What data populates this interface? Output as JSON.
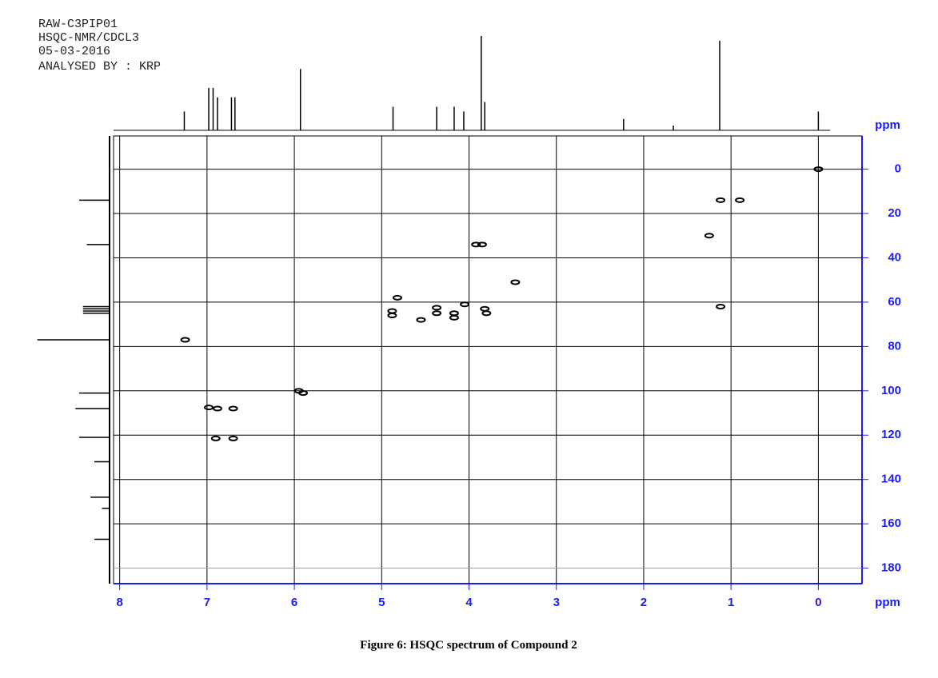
{
  "header": [
    "RAW-C3PIP01",
    "HSQC-NMR/CDCL3",
    "05-03-2016",
    "ANALYSED BY : KRP"
  ],
  "caption": "Figure 6: HSQC spectrum of Compound 2",
  "chart_data": {
    "type": "scatter",
    "x_label": "ppm",
    "y_label": "ppm",
    "x": [
      0.0,
      1.12,
      0.9,
      1.25,
      3.85,
      3.92,
      3.47,
      4.82,
      1.12,
      4.05,
      4.37,
      4.37,
      4.88,
      4.88,
      4.17,
      4.17,
      3.82,
      3.8,
      4.55,
      7.25,
      5.95,
      5.9,
      6.98,
      6.88,
      6.7,
      6.9,
      6.7
    ],
    "values": [
      0,
      14,
      14,
      30,
      34,
      34,
      51,
      58,
      62,
      61,
      62.5,
      65,
      64,
      66,
      65,
      67,
      63,
      65,
      68,
      77,
      100,
      101,
      107.5,
      108,
      108,
      121.5,
      121.5
    ],
    "color": "#000000",
    "xlim": [
      8.07,
      -0.5
    ],
    "xticks": [
      8,
      7,
      6,
      5,
      4,
      3,
      2,
      1,
      0
    ],
    "ylim": [
      -15,
      187
    ],
    "yticks": [
      0,
      20,
      40,
      60,
      80,
      100,
      120,
      140,
      160,
      180
    ],
    "grid": true,
    "axis_color": "#1a1aff",
    "f2_projection": {
      "x": [
        7.26,
        6.98,
        6.93,
        6.88,
        6.72,
        6.68,
        5.93,
        4.87,
        4.37,
        4.17,
        4.06,
        3.86,
        3.82,
        2.23,
        1.66,
        1.13,
        0.0
      ],
      "values": [
        0.2,
        0.45,
        0.45,
        0.35,
        0.35,
        0.35,
        0.65,
        0.25,
        0.25,
        0.25,
        0.2,
        1.0,
        0.3,
        0.12,
        0.05,
        0.95,
        0.2
      ]
    },
    "f1_projection": {
      "y": [
        14,
        34,
        62,
        63,
        64,
        65,
        77,
        101,
        108,
        121,
        132,
        148,
        153,
        167
      ],
      "values": [
        0.4,
        0.3,
        0.35,
        0.35,
        0.35,
        0.35,
        0.95,
        0.4,
        0.45,
        0.4,
        0.2,
        0.25,
        0.1,
        0.2
      ]
    }
  }
}
